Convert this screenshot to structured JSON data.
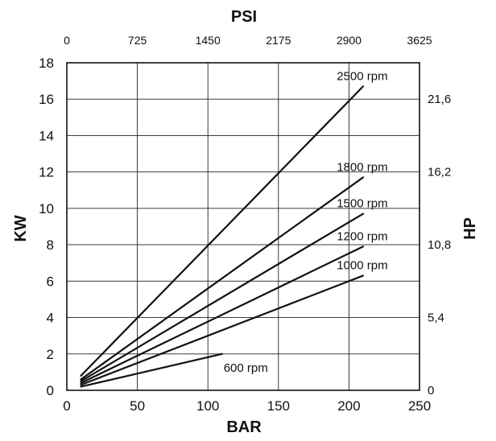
{
  "chart_data": {
    "type": "line",
    "title": "",
    "xlabel": "BAR",
    "ylabel": "KW",
    "top_axis": {
      "label": "PSI",
      "ticks": [
        "0",
        "725",
        "1450",
        "2175",
        "2900",
        "3625"
      ]
    },
    "right_axis": {
      "label": "HP",
      "ticks": [
        "0",
        "5,4",
        "10,8",
        "16,2",
        "21,6"
      ],
      "tick_values_kw": [
        0,
        4,
        8,
        12,
        16
      ]
    },
    "xlim": [
      0,
      250
    ],
    "ylim": [
      0,
      18
    ],
    "xticks": [
      "0",
      "50",
      "100",
      "150",
      "200",
      "250"
    ],
    "yticks": [
      "0",
      "2",
      "4",
      "6",
      "8",
      "10",
      "12",
      "14",
      "16",
      "18"
    ],
    "grid": true,
    "legend": "none",
    "series": [
      {
        "name": "2500 rpm",
        "points": [
          [
            10,
            0.8
          ],
          [
            210,
            16.7
          ]
        ]
      },
      {
        "name": "1800 rpm",
        "points": [
          [
            10,
            0.6
          ],
          [
            210,
            11.7
          ]
        ]
      },
      {
        "name": "1500 rpm",
        "points": [
          [
            10,
            0.5
          ],
          [
            210,
            9.7
          ]
        ]
      },
      {
        "name": "1200 rpm",
        "points": [
          [
            10,
            0.4
          ],
          [
            210,
            7.9
          ]
        ]
      },
      {
        "name": "1000 rpm",
        "points": [
          [
            10,
            0.3
          ],
          [
            210,
            6.3
          ]
        ]
      },
      {
        "name": "600 rpm",
        "points": [
          [
            10,
            0.2
          ],
          [
            110,
            2.0
          ]
        ]
      }
    ]
  }
}
